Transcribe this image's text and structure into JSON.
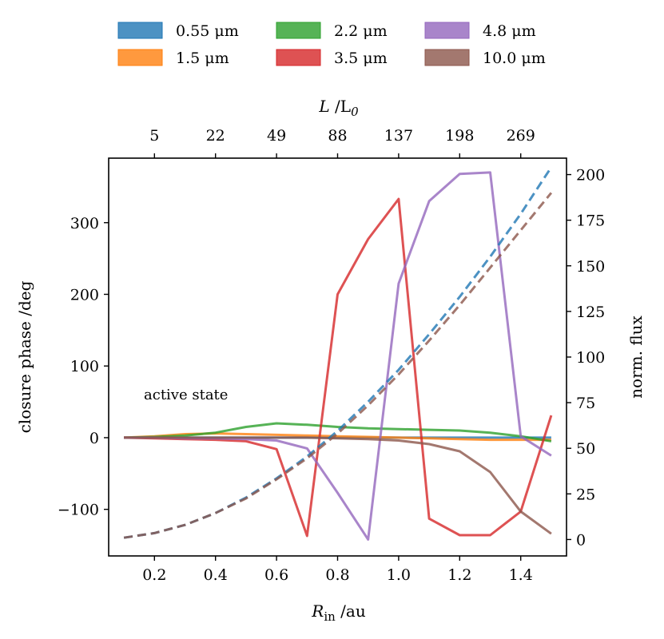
{
  "chart_data": {
    "type": "line",
    "annotation": "active state",
    "xlabel_main": "R",
    "xlabel_sub": "in",
    "xlabel_unit": " /au",
    "top_xlabel_main": "L",
    "top_xlabel_mid": " /L",
    "top_xlabel_sub": "0",
    "ylabel_left": "closure phase /deg",
    "ylabel_right": "norm. flux",
    "xlim": [
      0.05,
      1.55
    ],
    "ylim_left": [
      -165,
      390
    ],
    "ylim_right": [
      -9,
      209
    ],
    "x": [
      0.1,
      0.2,
      0.3,
      0.4,
      0.5,
      0.6,
      0.7,
      0.8,
      0.9,
      1.0,
      1.1,
      1.2,
      1.3,
      1.4,
      1.5
    ],
    "x_ticks": [
      0.2,
      0.4,
      0.6,
      0.8,
      1.0,
      1.2,
      1.4
    ],
    "x_tick_labels": [
      "0.2",
      "0.4",
      "0.6",
      "0.8",
      "1.0",
      "1.2",
      "1.4"
    ],
    "top_x_ticks": [
      0.2,
      0.4,
      0.6,
      0.8,
      1.0,
      1.2,
      1.4
    ],
    "top_x_tick_labels": [
      "5",
      "22",
      "49",
      "88",
      "137",
      "198",
      "269"
    ],
    "y_left_ticks": [
      -100,
      0,
      100,
      200,
      300
    ],
    "y_left_tick_labels": [
      "−100",
      "0",
      "100",
      "200",
      "300"
    ],
    "y_right_ticks": [
      0,
      25,
      50,
      75,
      100,
      125,
      150,
      175,
      200
    ],
    "y_right_tick_labels": [
      "0",
      "25",
      "50",
      "75",
      "100",
      "125",
      "150",
      "175",
      "200"
    ],
    "series": [
      {
        "name": "0.55 μm",
        "color": "#1f77b4",
        "closure_phase": [
          0,
          0,
          0,
          0,
          0,
          0,
          0,
          0,
          0,
          0,
          0,
          0,
          0,
          0,
          0
        ],
        "norm_flux": [
          1,
          3.5,
          8,
          14.5,
          23,
          33.5,
          45.5,
          59.5,
          75.5,
          93,
          112.5,
          133,
          155,
          178.5,
          204
        ]
      },
      {
        "name": "1.5 μm",
        "color": "#ff7f0e",
        "closure_phase": [
          0,
          2,
          5,
          6,
          5,
          4,
          3,
          2,
          1,
          0,
          -1,
          -2,
          -3,
          -3,
          -3
        ],
        "norm_flux": null
      },
      {
        "name": "2.2 μm",
        "color": "#2ca02c",
        "closure_phase": [
          0,
          1,
          3,
          7,
          15,
          20,
          18,
          15,
          13,
          12,
          11,
          10,
          7,
          2,
          -5
        ],
        "norm_flux": null
      },
      {
        "name": "3.5 μm",
        "color": "#d62728",
        "closure_phase": [
          0,
          -1,
          -2,
          -3,
          -5,
          -16,
          -137,
          200,
          277,
          333,
          -113,
          -136,
          -136,
          -103,
          31
        ],
        "norm_flux": null
      },
      {
        "name": "4.8 μm",
        "color": "#9467bd",
        "closure_phase": [
          0,
          0,
          -1,
          -1,
          -2,
          -4,
          -15,
          -77,
          -142,
          215,
          330,
          368,
          370,
          2,
          -25
        ],
        "norm_flux": null
      },
      {
        "name": "10.0 μm",
        "color": "#8c564b",
        "closure_phase": [
          0,
          0,
          0,
          0,
          0,
          0,
          0,
          -1,
          -2,
          -4,
          -9,
          -19,
          -48,
          -103,
          -134
        ],
        "norm_flux": [
          1,
          3.5,
          8,
          14.5,
          22.5,
          33,
          44.5,
          58,
          73.5,
          90.5,
          109,
          128.5,
          149,
          169.5,
          190
        ]
      }
    ]
  }
}
